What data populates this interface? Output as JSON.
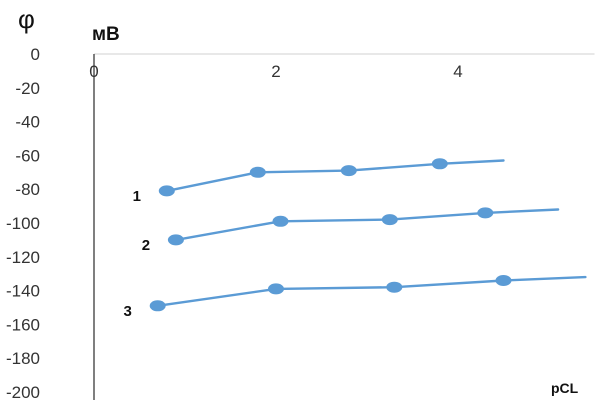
{
  "chart_data": {
    "type": "line",
    "y_axis_symbol": "φ",
    "ylabel": "мВ",
    "xlabel": "pCL",
    "xlim": [
      0,
      5.5
    ],
    "ylim": [
      -200,
      0
    ],
    "x_ticks": [
      0,
      2,
      4
    ],
    "y_ticks": [
      0,
      -20,
      -40,
      -60,
      -80,
      -100,
      -120,
      -140,
      -160,
      -180,
      -200
    ],
    "grid": false,
    "line_color": "#5b9bd5",
    "series": [
      {
        "label": "1",
        "x": [
          0.8,
          1.8,
          2.8,
          3.8
        ],
        "y": [
          -81,
          -70,
          -69,
          -65
        ],
        "line_end": [
          4.5,
          -63
        ]
      },
      {
        "label": "2",
        "x": [
          0.9,
          2.05,
          3.25,
          4.3
        ],
        "y": [
          -110,
          -99,
          -98,
          -94
        ],
        "line_end": [
          5.1,
          -92
        ]
      },
      {
        "label": "3",
        "x": [
          0.7,
          2.0,
          3.3,
          4.5
        ],
        "y": [
          -149,
          -139,
          -138,
          -134
        ],
        "line_end": [
          5.4,
          -132
        ]
      }
    ]
  }
}
